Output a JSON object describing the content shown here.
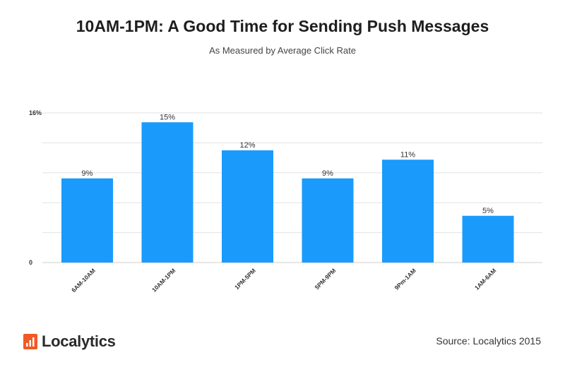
{
  "chart_data": {
    "type": "bar",
    "title": "10AM-1PM: A Good Time for Sending Push Messages",
    "subtitle": "As Measured by Average Click Rate",
    "categories": [
      "6AM-10AM",
      "10AM-1PM",
      "1PM-5PM",
      "5PM-9PM",
      "9Pm-1AM",
      "1AM-6AM"
    ],
    "values": [
      9,
      15,
      12,
      9,
      11,
      5
    ],
    "value_labels": [
      "9%",
      "15%",
      "12%",
      "9%",
      "11%",
      "5%"
    ],
    "ylim": [
      0,
      16
    ],
    "y_tick_labels": [
      "0",
      "16%"
    ],
    "grid": true,
    "bar_color": "#1a9bfc"
  },
  "footer": {
    "logo_text": "Localytics",
    "logo_color": "#f15a24",
    "source": "Source: Localytics 2015"
  }
}
